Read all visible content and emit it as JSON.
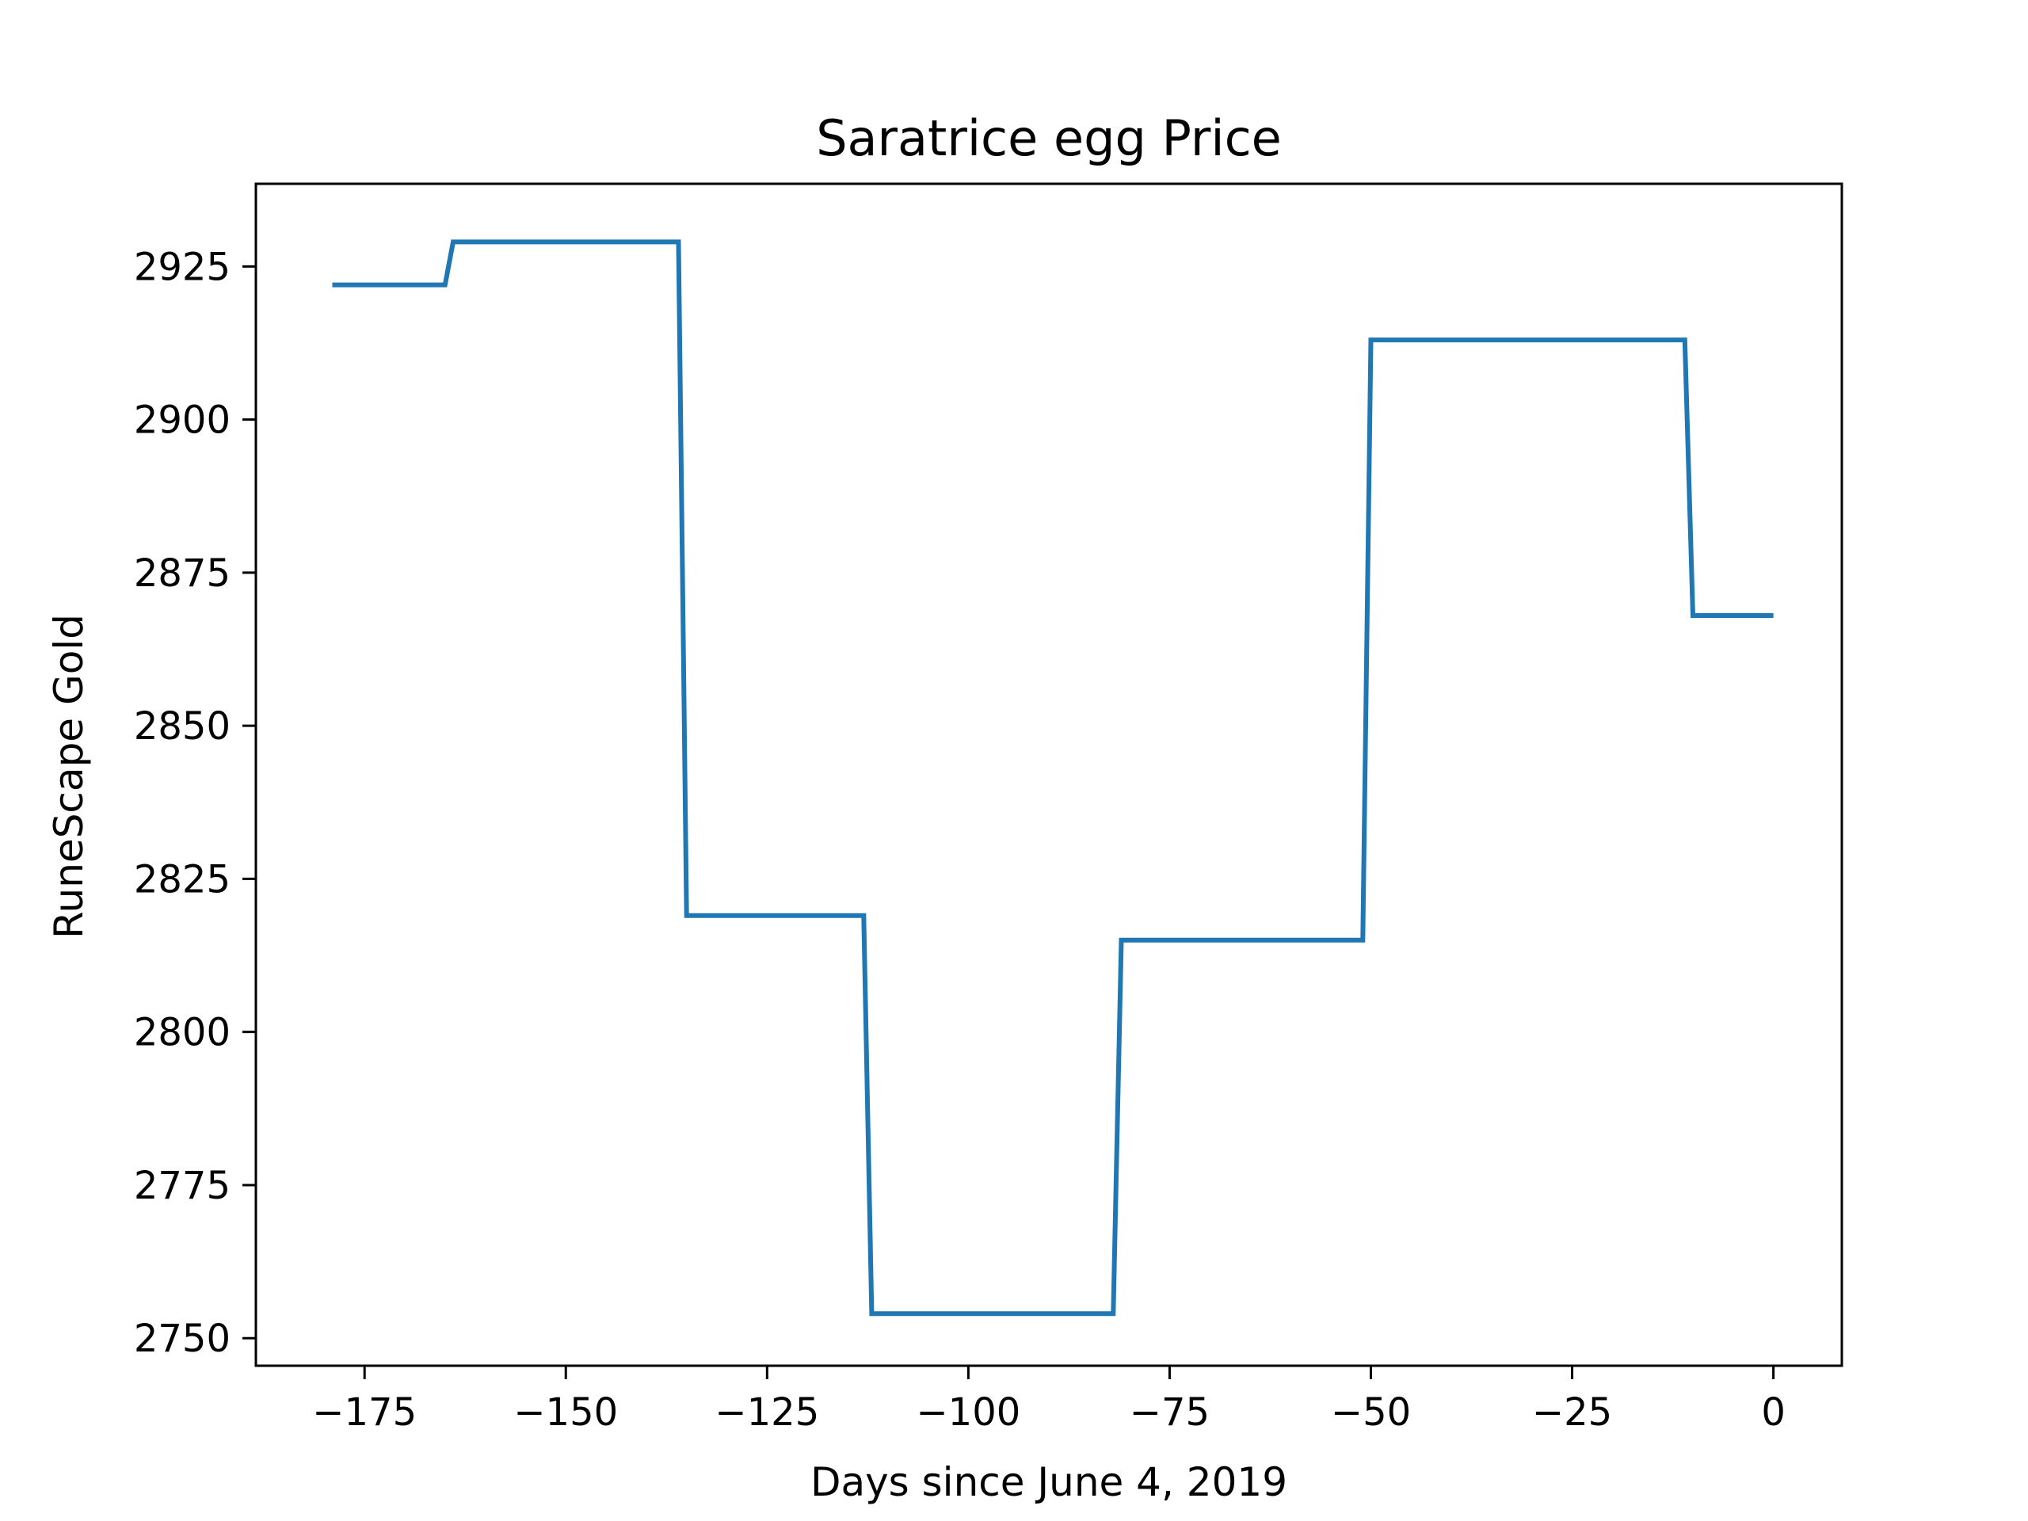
{
  "chart_data": {
    "type": "line",
    "title": "Saratrice egg Price",
    "xlabel": "Days since June 4, 2019",
    "ylabel": "RuneScape Gold",
    "xlim": [
      -188.5,
      8.5
    ],
    "ylim": [
      2745.5,
      2938.5
    ],
    "xticks": [
      -175,
      -150,
      -125,
      -100,
      -75,
      -50,
      -25,
      0
    ],
    "xtick_labels": [
      "−175",
      "−150",
      "−125",
      "−100",
      "−75",
      "−50",
      "−25",
      "0"
    ],
    "yticks": [
      2750,
      2775,
      2800,
      2825,
      2850,
      2875,
      2900,
      2925
    ],
    "ytick_labels": [
      "2750",
      "2775",
      "2800",
      "2825",
      "2850",
      "2875",
      "2900",
      "2925"
    ],
    "grid": false,
    "line_color": "#1f77b4",
    "series": [
      {
        "x": [
          -179,
          -165,
          -164,
          -136,
          -135,
          -113,
          -112,
          -82,
          -81,
          -51,
          -50,
          -11,
          -10,
          0
        ],
        "y": [
          2922,
          2922,
          2929,
          2929,
          2819,
          2819,
          2754,
          2754,
          2815,
          2815,
          2913,
          2913,
          2868,
          2868
        ]
      }
    ]
  }
}
